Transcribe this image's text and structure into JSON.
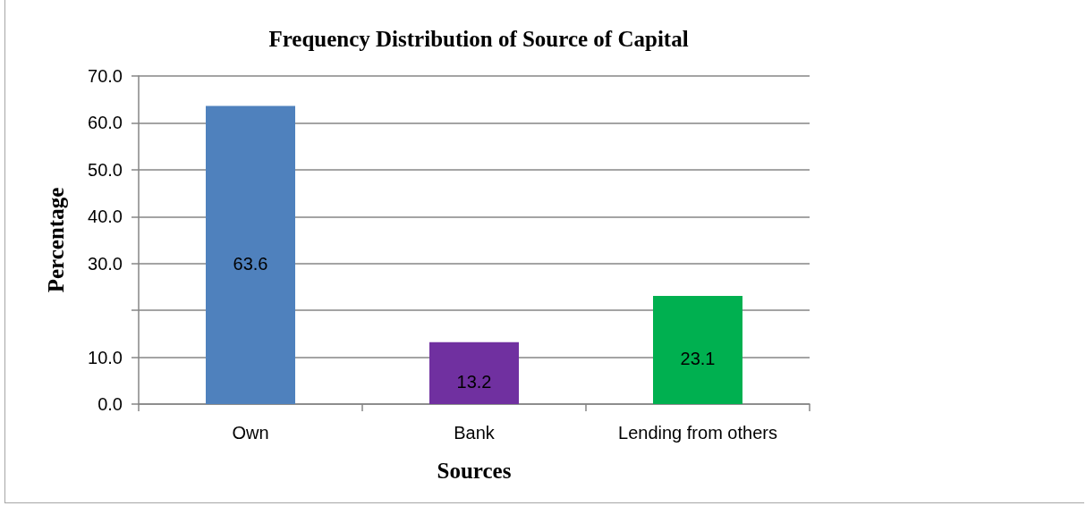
{
  "chart_data": {
    "type": "bar",
    "title": "Frequency Distribution of Source of Capital",
    "xlabel": "Sources",
    "ylabel": "Percentage",
    "categories": [
      "Own",
      "Bank",
      "Lending from others"
    ],
    "values": [
      63.6,
      13.2,
      23.1
    ],
    "colors": [
      "#4f81bd",
      "#7030a0",
      "#00b050"
    ],
    "ylim": [
      0,
      70
    ],
    "yticks": [
      {
        "value": 0,
        "label": "0.0"
      },
      {
        "value": 10,
        "label": "10.0"
      },
      {
        "value": 20,
        "label": null
      },
      {
        "value": 30,
        "label": "30.0"
      },
      {
        "value": 40,
        "label": "40.0"
      },
      {
        "value": 50,
        "label": "50.0"
      },
      {
        "value": 60,
        "label": "60.0"
      },
      {
        "value": 70,
        "label": "70.0"
      }
    ],
    "grid": "y",
    "data_labels": true
  }
}
